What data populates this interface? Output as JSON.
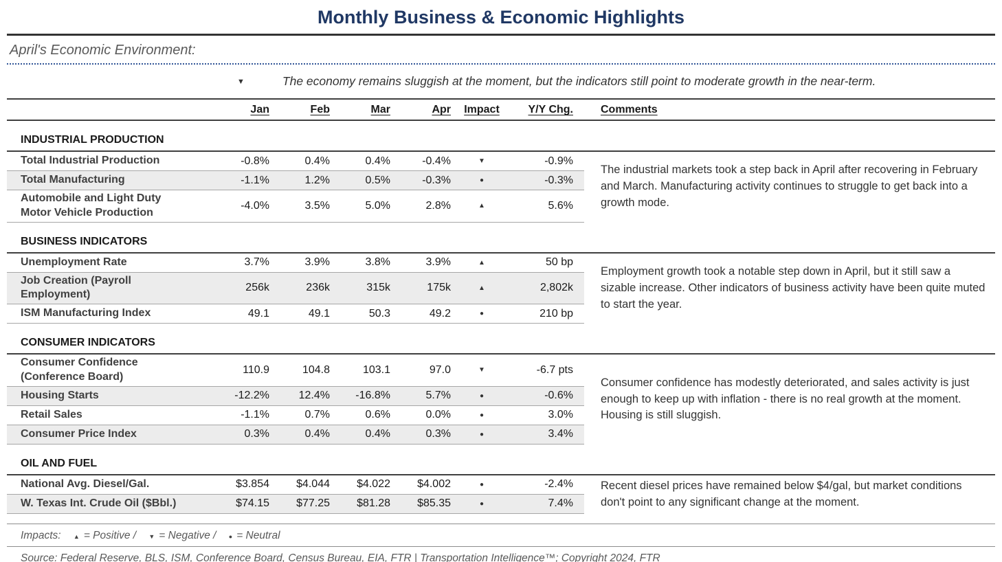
{
  "title": "Monthly Business & Economic Highlights",
  "colors": {
    "title_navy": "#203864",
    "dotted_underline_blue": "#2f5496",
    "row_band_gray": "#ececec",
    "rule_dark": "#3f3f3f"
  },
  "environment": {
    "label": "April's Economic Environment:",
    "impact": "down",
    "summary": "The economy remains sluggish at the moment, but the indicators still point to moderate growth in the near-term."
  },
  "table": {
    "headers": [
      "Jan",
      "Feb",
      "Mar",
      "Apr",
      "Impact",
      "Y/Y Chg.",
      "Comments"
    ],
    "sections": [
      {
        "name": "INDUSTRIAL PRODUCTION",
        "comment": "The industrial markets took a step back in April after recovering in February and March. Manufacturing activity continues to struggle to get back into a growth mode.",
        "rows": [
          {
            "label": "Total Industrial Production",
            "values": [
              "-0.8%",
              "0.4%",
              "0.4%",
              "-0.4%"
            ],
            "impact": "down",
            "yy": "-0.9%"
          },
          {
            "label": "Total Manufacturing",
            "values": [
              "-1.1%",
              "1.2%",
              "0.5%",
              "-0.3%"
            ],
            "impact": "neutral",
            "yy": "-0.3%"
          },
          {
            "label": "Automobile and Light Duty Motor Vehicle Production",
            "values": [
              "-4.0%",
              "3.5%",
              "5.0%",
              "2.8%"
            ],
            "impact": "up",
            "yy": "5.6%"
          }
        ]
      },
      {
        "name": "BUSINESS INDICATORS",
        "comment": "Employment growth took a notable step down in April, but it still saw a sizable increase. Other indicators of business activity have been quite muted to start the year.",
        "rows": [
          {
            "label": "Unemployment Rate",
            "values": [
              "3.7%",
              "3.9%",
              "3.8%",
              "3.9%"
            ],
            "impact": "up",
            "yy": "50 bp"
          },
          {
            "label": "Job Creation (Payroll Employment)",
            "values": [
              "256k",
              "236k",
              "315k",
              "175k"
            ],
            "impact": "up",
            "yy": "2,802k"
          },
          {
            "label": "ISM Manufacturing Index",
            "values": [
              "49.1",
              "49.1",
              "50.3",
              "49.2"
            ],
            "impact": "neutral",
            "yy": "210 bp"
          }
        ]
      },
      {
        "name": "CONSUMER INDICATORS",
        "comment": "Consumer confidence has modestly deteriorated, and sales activity is just enough to keep up with inflation - there is no real growth at the moment. Housing is still sluggish.",
        "rows": [
          {
            "label": "Consumer Confidence (Conference Board)",
            "values": [
              "110.9",
              "104.8",
              "103.1",
              "97.0"
            ],
            "impact": "down",
            "yy": "-6.7 pts"
          },
          {
            "label": "Housing Starts",
            "values": [
              "-12.2%",
              "12.4%",
              "-16.8%",
              "5.7%"
            ],
            "impact": "neutral",
            "yy": "-0.6%"
          },
          {
            "label": "Retail Sales",
            "values": [
              "-1.1%",
              "0.7%",
              "0.6%",
              "0.0%"
            ],
            "impact": "neutral",
            "yy": "3.0%"
          },
          {
            "label": "Consumer Price Index",
            "values": [
              "0.3%",
              "0.4%",
              "0.4%",
              "0.3%"
            ],
            "impact": "neutral",
            "yy": "3.4%"
          }
        ]
      },
      {
        "name": "OIL AND FUEL",
        "comment": "Recent diesel prices have remained below $4/gal, but market conditions don't point to any significant change at the moment.",
        "rows": [
          {
            "label": "National Avg. Diesel/Gal.",
            "values": [
              "$3.854",
              "$4.044",
              "$4.022",
              "$4.002"
            ],
            "impact": "neutral",
            "yy": "-2.4%"
          },
          {
            "label": "W. Texas Int. Crude Oil ($Bbl.)",
            "values": [
              "$74.15",
              "$77.25",
              "$81.28",
              "$85.35"
            ],
            "impact": "neutral",
            "yy": "7.4%"
          }
        ]
      }
    ]
  },
  "legend": {
    "prefix": "Impacts:",
    "items": [
      {
        "icon": "up",
        "label": "= Positive /"
      },
      {
        "icon": "down",
        "label": "= Negative /"
      },
      {
        "icon": "neutral",
        "label": "= Neutral"
      }
    ]
  },
  "source": "Source: Federal Reserve, BLS, ISM, Conference Board, Census Bureau, EIA, FTR | Transportation Intelligence™; Copyright 2024, FTR"
}
